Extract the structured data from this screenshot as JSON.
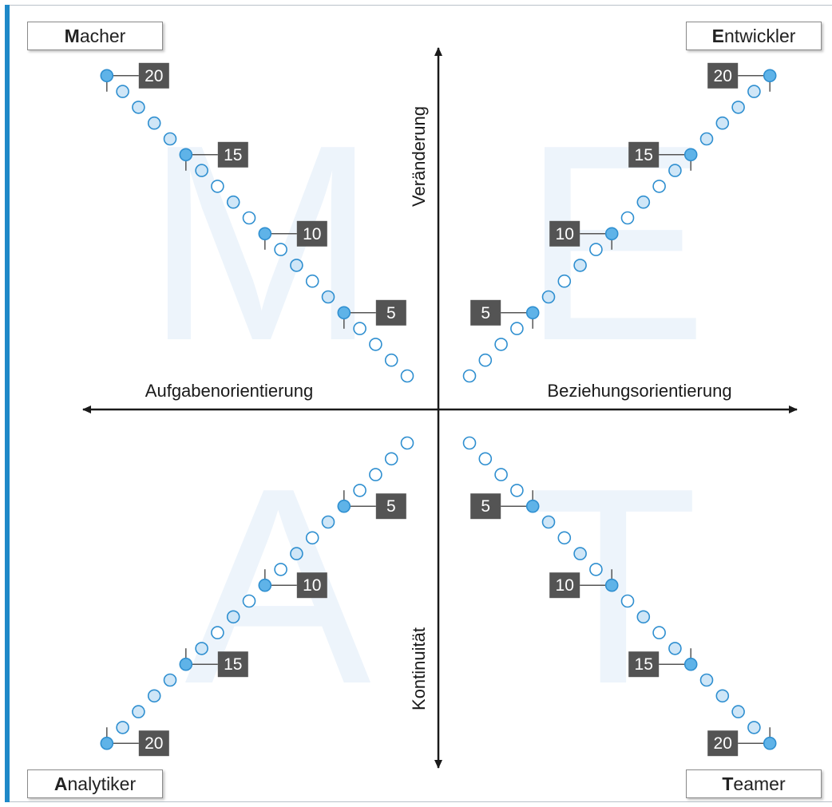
{
  "quadrants": [
    {
      "key": "macher",
      "initial": "M",
      "rest": "acher",
      "watermark": "M",
      "pos": "top-left"
    },
    {
      "key": "entwickler",
      "initial": "E",
      "rest": "ntwickler",
      "watermark": "E",
      "pos": "top-right"
    },
    {
      "key": "analytiker",
      "initial": "A",
      "rest": "nalytiker",
      "watermark": "A",
      "pos": "bottom-left"
    },
    {
      "key": "teamer",
      "initial": "T",
      "rest": "eamer",
      "watermark": "T",
      "pos": "bottom-right"
    }
  ],
  "axes": {
    "top": "Veränderung",
    "bottom": "Kontinuität",
    "left": "Aufgabenorientierung",
    "right": "Beziehungsorientierung"
  },
  "scale": {
    "steps": 20,
    "labeled": [
      "5",
      "10",
      "15",
      "20"
    ]
  },
  "colors": {
    "accent": "#1e88c8",
    "dot_fill_marked": "#5fb3e8",
    "dot_fill_light": "#cfe6f7",
    "dot_stroke": "#2f8fd0",
    "label_bg": "#545454",
    "watermark": "#edf4fb",
    "axis": "#1a1a1a"
  }
}
